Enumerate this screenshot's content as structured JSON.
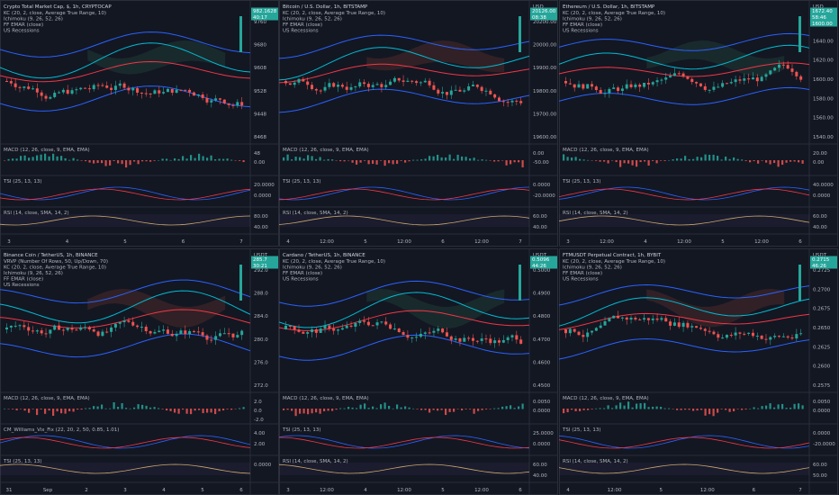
{
  "panes": [
    {
      "title": "Crypto Total Market Cap, $, 1h, CRYPTOCAP",
      "lines": [
        "KC (20, 2, close, Average True Range, 10)",
        "Ichimoku (9, 26, 52, 26)",
        "FF EMAR (close)",
        "US Recessions"
      ],
      "currency": "",
      "price_ticks": [
        "9760",
        "9680",
        "9608",
        "9528",
        "9448",
        "8468"
      ],
      "tags": [
        {
          "text": "982.1628",
          "color": "#26a69a"
        },
        {
          "text": "40:17",
          "color": "#26a69a"
        }
      ],
      "macd": "MACD (12, 26, close, 9, EMA, EMA)",
      "macd_ticks": [
        "48",
        "0.00"
      ],
      "tsi": "TSI (25, 13, 13)",
      "tsi_ticks": [
        "20.0000",
        "0.0000"
      ],
      "third": "RSI (14, close, SMA, 14, 2)",
      "third_ticks": [
        "80.00",
        "40.00"
      ],
      "time_ticks": [
        "3",
        "4",
        "5",
        "6",
        "7"
      ]
    },
    {
      "title": "Bitcoin / U.S. Dollar, 1h, BITSTAMP",
      "lines": [
        "KC (20, 2, close, Average True Range, 10)",
        "Ichimoku (9, 26, 52, 26)",
        "FF EMAR (close)",
        "US Recessions"
      ],
      "currency": "USD",
      "price_ticks": [
        "20200.00",
        "20000.00",
        "19900.00",
        "19800.00",
        "19700.00",
        "19600.00"
      ],
      "tags": [
        {
          "text": "20126.00",
          "color": "#26a69a"
        },
        {
          "text": "08:38",
          "color": "#26a69a"
        }
      ],
      "macd": "MACD (12, 26, close, 9, EMA, EMA)",
      "macd_ticks": [
        "0.00",
        "-50.00"
      ],
      "tsi": "TSI (25, 13, 13)",
      "tsi_ticks": [
        "0.0000",
        "-20.0000"
      ],
      "third": "RSI (14, close, SMA, 14, 2)",
      "third_ticks": [
        "60.00",
        "40.00"
      ],
      "time_ticks": [
        "4",
        "12:00",
        "5",
        "12:00",
        "6",
        "12:00",
        "7"
      ]
    },
    {
      "title": "Ethereum / U.S. Dollar, 1h, BITSTAMP",
      "lines": [
        "KC (20, 2, close, Average True Range, 10)",
        "Ichimoku (9, 26, 52, 26)",
        "FF EMAR (close)",
        "US Recessions"
      ],
      "currency": "USD",
      "price_ticks": [
        "1660.00",
        "1640.00",
        "1620.00",
        "1600.00",
        "1580.00",
        "1560.00",
        "1540.00"
      ],
      "tags": [
        {
          "text": "1672.40",
          "color": "#26a69a"
        },
        {
          "text": "58:46",
          "color": "#26a69a"
        },
        {
          "text": "1600.00",
          "color": "#26a69a"
        }
      ],
      "macd": "MACD (12, 26, close, 9, EMA, EMA)",
      "macd_ticks": [
        "20.00",
        "0.00"
      ],
      "tsi": "TSI (25, 13, 13)",
      "tsi_ticks": [
        "40.0000",
        "0.0000"
      ],
      "third": "RSI (14, close, SMA, 14, 2)",
      "third_ticks": [
        "60.00",
        "40.00"
      ],
      "time_ticks": [
        "3",
        "12:00",
        "4",
        "12:00",
        "5",
        "12:00",
        "6"
      ]
    },
    {
      "title": "Binance Coin / TetherUS, 1h, BINANCE",
      "lines": [
        "VRVP (Number Of Rows, 50, Up/Down, 70)",
        "KC (20, 2, close, Average True Range, 10)",
        "Ichimoku (9, 26, 52, 26)",
        "FF EMAR (close)",
        "US Recessions"
      ],
      "currency": "USDT",
      "price_ticks": [
        "292.0",
        "288.0",
        "284.0",
        "280.0",
        "276.0",
        "272.0"
      ],
      "tags": [
        {
          "text": "285.7",
          "color": "#26a69a"
        },
        {
          "text": "30:21",
          "color": "#26a69a"
        }
      ],
      "macd": "MACD (12, 26, close, 9, EMA, EMA)",
      "macd_ticks": [
        "2.0",
        "0.0",
        "-2.0"
      ],
      "tsi": "CM_Williams_Vix_Fix (22, 20, 2, 50, 0.85, 1.01)",
      "tsi_ticks": [
        "4.00",
        "2.00"
      ],
      "third": "TSI (25, 13, 13)",
      "third_ticks": [
        "0.0000"
      ],
      "time_ticks": [
        "31",
        "Sep",
        "2",
        "3",
        "4",
        "5",
        "6"
      ]
    },
    {
      "title": "Cardano / TetherUS, 1h, BINANCE",
      "lines": [
        "KC (20, 2, close, Average True Range, 10)",
        "Ichimoku (9, 26, 52, 26)",
        "FF EMAR (close)",
        "US Recessions"
      ],
      "currency": "USDT",
      "price_ticks": [
        "0.5000",
        "0.4900",
        "0.4800",
        "0.4700",
        "0.4600",
        "0.4500"
      ],
      "tags": [
        {
          "text": "0.5096",
          "color": "#26a69a"
        },
        {
          "text": "44:26",
          "color": "#26a69a"
        }
      ],
      "macd": "MACD (12, 26, close, 9, EMA, EMA)",
      "macd_ticks": [
        "0.0050",
        "0.0000"
      ],
      "tsi": "TSI (25, 13, 13)",
      "tsi_ticks": [
        "25.0000",
        "0.0000"
      ],
      "third": "RSI (14, close, SMA, 14, 2)",
      "third_ticks": [
        "60.00",
        "40.00"
      ],
      "time_ticks": [
        "3",
        "12:00",
        "4",
        "12:00",
        "5",
        "12:00",
        "6"
      ]
    },
    {
      "title": "FTMUSDT Perpetual Contract, 1h, BYBIT",
      "lines": [
        "KC (20, 2, close, Average True Range, 10)",
        "Ichimoku (9, 26, 52, 26)",
        "FF EMAR (close)",
        "US Recessions"
      ],
      "currency": "USDT",
      "price_ticks": [
        "0.2725",
        "0.2700",
        "0.2675",
        "0.2650",
        "0.2625",
        "0.2600",
        "0.2575"
      ],
      "tags": [
        {
          "text": "0.2715",
          "color": "#26a69a"
        },
        {
          "text": "46:26",
          "color": "#26a69a"
        }
      ],
      "macd": "MACD (12, 26, close, 9, EMA, EMA)",
      "macd_ticks": [
        "0.0050",
        "0.0000"
      ],
      "tsi": "TSI (25, 13, 13)",
      "tsi_ticks": [
        "0.0000",
        "-20.0000"
      ],
      "third": "RSI (14, close, SMA, 14, 2)",
      "third_ticks": [
        "60.00",
        "50.00"
      ],
      "time_ticks": [
        "4",
        "12:00",
        "5",
        "12:00",
        "6",
        "7"
      ]
    }
  ]
}
